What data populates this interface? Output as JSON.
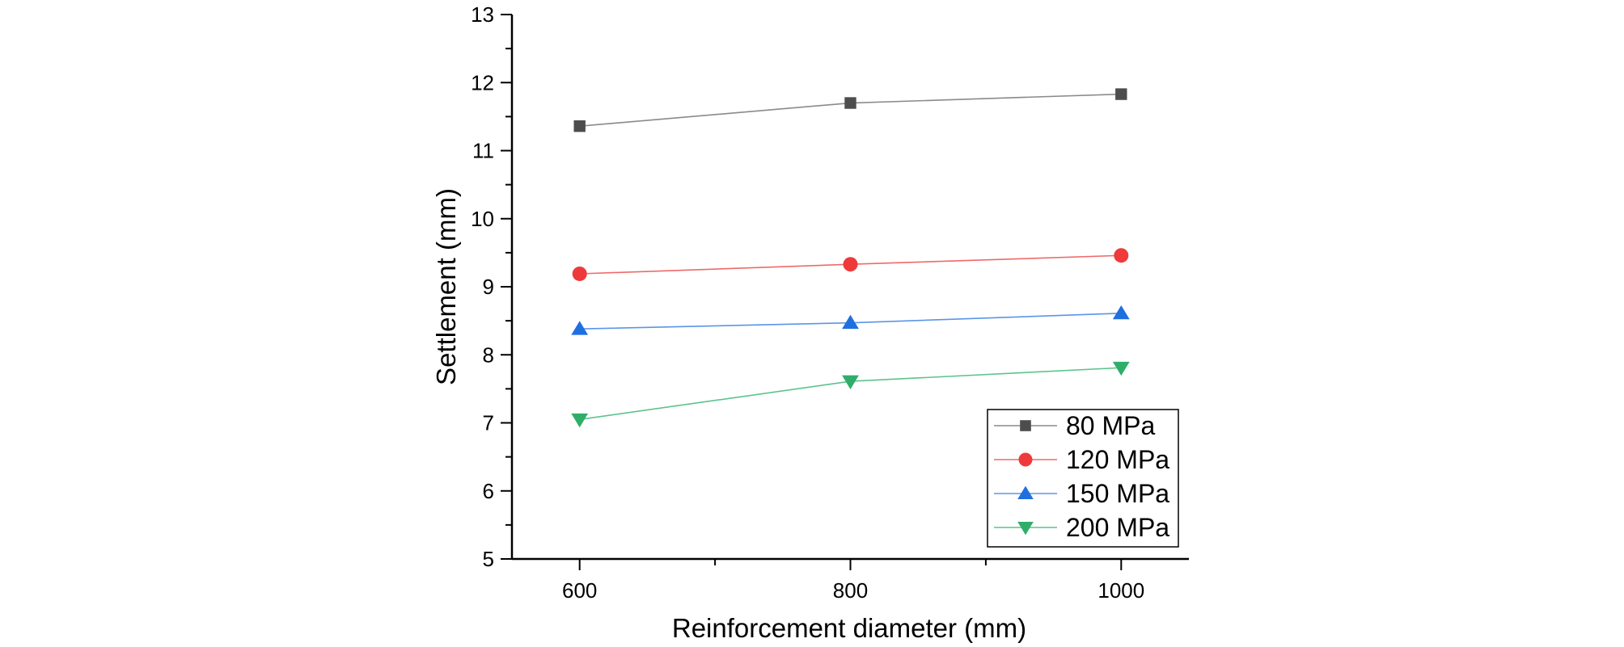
{
  "chart_data": {
    "type": "line",
    "title": "",
    "xlabel": "Reinforcement diameter (mm)",
    "ylabel": "Settlement (mm)",
    "x": [
      600,
      800,
      1000
    ],
    "xlim": [
      550,
      1050
    ],
    "ylim": [
      5,
      13
    ],
    "xticks": [
      600,
      800,
      1000
    ],
    "xticks_minor": [
      700,
      900
    ],
    "yticks": [
      5,
      6,
      7,
      8,
      9,
      10,
      11,
      12,
      13
    ],
    "yticks_minor_step": 0.5,
    "grid": false,
    "legend_position": "bottom-right",
    "series": [
      {
        "name": "80 MPa",
        "values": [
          11.36,
          11.7,
          11.83
        ],
        "color": "#4d4d4d",
        "line_color": "#8a8a8a",
        "marker": "square"
      },
      {
        "name": "120 MPa",
        "values": [
          9.19,
          9.33,
          9.46
        ],
        "color": "#ee3a3a",
        "line_color": "#ee6a6a",
        "marker": "circle"
      },
      {
        "name": "150 MPa",
        "values": [
          8.38,
          8.47,
          8.61
        ],
        "color": "#1f6fe0",
        "line_color": "#5a95e8",
        "marker": "triangle-up"
      },
      {
        "name": "200 MPa",
        "values": [
          7.05,
          7.61,
          7.81
        ],
        "color": "#2fae6a",
        "line_color": "#5cc38c",
        "marker": "triangle-down"
      }
    ]
  }
}
